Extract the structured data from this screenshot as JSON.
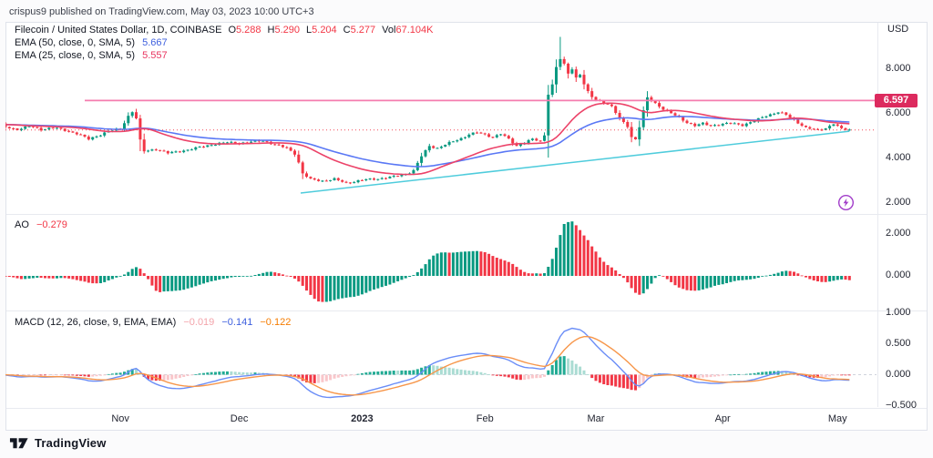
{
  "header": {
    "attribution": "crispus9 published on TradingView.com, May 03, 2023 10:00 UTC+3"
  },
  "footer": {
    "brand": "TradingView"
  },
  "price_pane": {
    "legend": {
      "title": "Filecoin / United States Dollar, 1D, COINBASE",
      "ohlc": [
        {
          "k": "O",
          "v": "5.288"
        },
        {
          "k": "H",
          "v": "5.290"
        },
        {
          "k": "L",
          "v": "5.204"
        },
        {
          "k": "C",
          "v": "5.277"
        },
        {
          "k": "Vol",
          "v": "67.104K"
        }
      ],
      "ema50_label": "EMA (50, close, 0, SMA, 5)",
      "ema50_value": "5.667",
      "ema25_label": "EMA (25, close, 0, SMA, 5)",
      "ema25_value": "5.557"
    },
    "scale": {
      "currency": "USD",
      "badge": "6.597",
      "ticks": [
        {
          "v": 8,
          "label": "8.000"
        },
        {
          "v": 6,
          "label": "6.000"
        },
        {
          "v": 4,
          "label": "4.000"
        },
        {
          "v": 2,
          "label": "2.000"
        }
      ]
    }
  },
  "ao_pane": {
    "label": "AO",
    "value": "−0.279",
    "ticks": [
      {
        "v": 2,
        "label": "2.000"
      },
      {
        "v": 0,
        "label": "0.000"
      }
    ]
  },
  "macd_pane": {
    "label": "MACD (12, 26, close, 9, EMA, EMA)",
    "hist_value": "−0.019",
    "macd_value": "−0.141",
    "signal_value": "−0.122",
    "ticks": [
      {
        "v": 1,
        "label": "1.000"
      },
      {
        "v": 0.5,
        "label": "0.500"
      },
      {
        "v": 0,
        "label": "0.000"
      },
      {
        "v": -0.5,
        "label": "−0.500"
      }
    ]
  },
  "time_axis": {
    "labels": [
      {
        "day": 29,
        "text": "Nov"
      },
      {
        "day": 59,
        "text": "Dec"
      },
      {
        "day": 90,
        "text": "2023",
        "bold": true
      },
      {
        "day": 121,
        "text": "Feb"
      },
      {
        "day": 149,
        "text": "Mar"
      },
      {
        "day": 181,
        "text": "Apr"
      },
      {
        "day": 210,
        "text": "May"
      }
    ]
  },
  "chart_data": {
    "type": "candlestick",
    "symbol": "Filecoin / United States Dollar",
    "interval": "1D",
    "exchange": "COINBASE",
    "ohlc_last": {
      "open": 5.288,
      "high": 5.29,
      "low": 5.204,
      "close": 5.277,
      "volume": "67.104K"
    },
    "price_axis": {
      "range": [
        2,
        10
      ],
      "ticks": [
        2,
        4,
        6,
        8
      ],
      "currency": "USD"
    },
    "indicators": {
      "ema50": 5.667,
      "ema25": 5.557,
      "ao_last": -0.279,
      "macd_last": -0.141,
      "macd_signal_last": -0.122,
      "macd_hist_last": -0.019
    },
    "levels": {
      "horizontal_line": 6.597,
      "last_close": 5.277
    },
    "trendline": {
      "d1": 74.5,
      "p1": 2.45,
      "d2": 213,
      "p2": 5.22
    },
    "high_max": 9.45,
    "low_min": 2.62,
    "ao": {
      "peak": 2.6,
      "range": [
        -1.5,
        2.75
      ],
      "axis_ticks": [
        0,
        2
      ]
    },
    "macd": {
      "peak": 0.75,
      "range": [
        -0.5,
        1.0
      ],
      "axis_ticks": [
        -0.5,
        0,
        0.5,
        1
      ]
    },
    "keyframes": [
      [
        0,
        5.4
      ],
      [
        3,
        5.3
      ],
      [
        6,
        5.44
      ],
      [
        9,
        5.3
      ],
      [
        12,
        5.38
      ],
      [
        15,
        5.26
      ],
      [
        18,
        5.12
      ],
      [
        21,
        4.86
      ],
      [
        23,
        5.0
      ],
      [
        26,
        5.22
      ],
      [
        29,
        5.32
      ],
      [
        31,
        5.9
      ],
      [
        32,
        6.1
      ],
      [
        33,
        5.8
      ],
      [
        34,
        4.8
      ],
      [
        35,
        4.32
      ],
      [
        38,
        4.42
      ],
      [
        41,
        4.24
      ],
      [
        44,
        4.32
      ],
      [
        48,
        4.46
      ],
      [
        52,
        4.62
      ],
      [
        56,
        4.72
      ],
      [
        59,
        4.68
      ],
      [
        62,
        4.74
      ],
      [
        65,
        4.8
      ],
      [
        68,
        4.62
      ],
      [
        71,
        4.46
      ],
      [
        73,
        4.22
      ],
      [
        74,
        3.82
      ],
      [
        75,
        3.32
      ],
      [
        77,
        3.06
      ],
      [
        80,
        3.0
      ],
      [
        83,
        3.07
      ],
      [
        86,
        2.9
      ],
      [
        90,
        3.03
      ],
      [
        94,
        3.09
      ],
      [
        98,
        3.18
      ],
      [
        101,
        3.3
      ],
      [
        103,
        3.46
      ],
      [
        105,
        4.1
      ],
      [
        107,
        4.56
      ],
      [
        109,
        4.46
      ],
      [
        111,
        4.62
      ],
      [
        113,
        4.76
      ],
      [
        115,
        4.9
      ],
      [
        117,
        5.08
      ],
      [
        119,
        5.16
      ],
      [
        121,
        5.06
      ],
      [
        123,
        4.96
      ],
      [
        125,
        5.1
      ],
      [
        127,
        4.86
      ],
      [
        129,
        4.56
      ],
      [
        131,
        4.72
      ],
      [
        133,
        4.86
      ],
      [
        135,
        4.76
      ],
      [
        136,
        5.05
      ],
      [
        137,
        6.9
      ],
      [
        138,
        7.3
      ],
      [
        139,
        8.1
      ],
      [
        140,
        8.45
      ],
      [
        141,
        8.2
      ],
      [
        142,
        7.82
      ],
      [
        143,
        8.02
      ],
      [
        144,
        7.62
      ],
      [
        145,
        7.78
      ],
      [
        146,
        7.32
      ],
      [
        147,
        6.97
      ],
      [
        148,
        6.76
      ],
      [
        149,
        6.62
      ],
      [
        151,
        6.52
      ],
      [
        153,
        6.32
      ],
      [
        155,
        5.78
      ],
      [
        157,
        5.45
      ],
      [
        158,
        4.96
      ],
      [
        159,
        4.86
      ],
      [
        160,
        5.42
      ],
      [
        161,
        6.12
      ],
      [
        162,
        6.72
      ],
      [
        164,
        6.47
      ],
      [
        166,
        6.22
      ],
      [
        168,
        6.02
      ],
      [
        170,
        5.82
      ],
      [
        172,
        5.62
      ],
      [
        174,
        5.47
      ],
      [
        176,
        5.56
      ],
      [
        178,
        5.47
      ],
      [
        180,
        5.52
      ],
      [
        183,
        5.58
      ],
      [
        186,
        5.5
      ],
      [
        189,
        5.68
      ],
      [
        192,
        5.92
      ],
      [
        195,
        6.08
      ],
      [
        197,
        5.95
      ],
      [
        199,
        5.72
      ],
      [
        202,
        5.38
      ],
      [
        205,
        5.26
      ],
      [
        207,
        5.36
      ],
      [
        209,
        5.56
      ],
      [
        211,
        5.32
      ],
      [
        213,
        5.28
      ]
    ],
    "colors": {
      "up": "#089981",
      "down": "#f23645",
      "ema50": "#5a78f5",
      "ema25": "#ec4369",
      "level": "#f47daf",
      "badge": "#dc2a5e",
      "badge_text": "#ffffff",
      "trend": "#4fccdc",
      "macd_line": "#6a8df7",
      "signal_line": "#f7964a",
      "hist_pos_grow": "#22ab94",
      "hist_pos_fall": "#aadcd3",
      "hist_neg_fall": "#f23645",
      "hist_neg_grow": "#f9c6ca",
      "close_dotted": "#f23645",
      "zero_dashed": "#cfd3dc"
    }
  }
}
